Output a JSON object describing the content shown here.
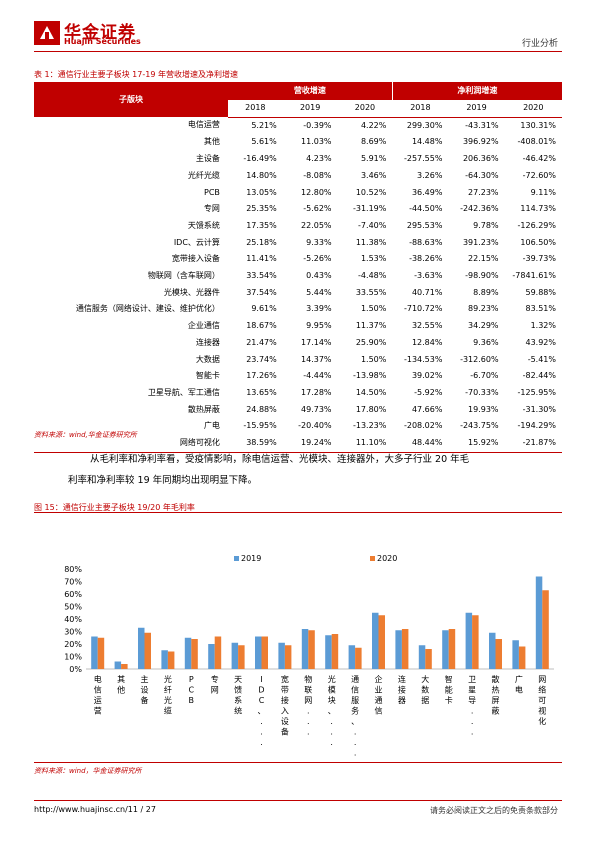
{
  "header": {
    "logo_cn": "华金证券",
    "logo_en": "Huajin Securities",
    "doc_type": "行业分析"
  },
  "table": {
    "caption": "表 1：通信行业主要子板块 17-19 年营收增速及净利增速",
    "col_sector": "子版块",
    "group_revenue": "营收增速",
    "group_profit": "净利润增速",
    "years": [
      "2018",
      "2019",
      "2020",
      "2018",
      "2019",
      "2020"
    ],
    "rows": [
      {
        "name": "电信运营",
        "v": [
          "5.21%",
          "-0.39%",
          "4.22%",
          "299.30%",
          "-43.31%",
          "130.31%"
        ]
      },
      {
        "name": "其他",
        "v": [
          "5.61%",
          "11.03%",
          "8.69%",
          "14.48%",
          "396.92%",
          "-408.01%"
        ]
      },
      {
        "name": "主设备",
        "v": [
          "-16.49%",
          "4.23%",
          "5.91%",
          "-257.55%",
          "206.36%",
          "-46.42%"
        ]
      },
      {
        "name": "光纤光缆",
        "v": [
          "14.80%",
          "-8.08%",
          "3.46%",
          "3.26%",
          "-64.30%",
          "-72.60%"
        ]
      },
      {
        "name": "PCB",
        "v": [
          "13.05%",
          "12.80%",
          "10.52%",
          "36.49%",
          "27.23%",
          "9.11%"
        ]
      },
      {
        "name": "专网",
        "v": [
          "25.35%",
          "-5.62%",
          "-31.19%",
          "-44.50%",
          "-242.36%",
          "114.73%"
        ]
      },
      {
        "name": "天馈系统",
        "v": [
          "17.35%",
          "22.05%",
          "-7.40%",
          "295.53%",
          "9.78%",
          "-126.29%"
        ]
      },
      {
        "name": "IDC、云计算",
        "v": [
          "25.18%",
          "9.33%",
          "11.38%",
          "-88.63%",
          "391.23%",
          "106.50%"
        ]
      },
      {
        "name": "宽带接入设备",
        "v": [
          "11.41%",
          "-5.26%",
          "1.53%",
          "-38.26%",
          "22.15%",
          "-39.73%"
        ]
      },
      {
        "name": "物联网（含车联网）",
        "v": [
          "33.54%",
          "0.43%",
          "-4.48%",
          "-3.63%",
          "-98.90%",
          "-7841.61%"
        ]
      },
      {
        "name": "光模块、光器件",
        "v": [
          "37.54%",
          "5.44%",
          "33.55%",
          "40.71%",
          "8.89%",
          "59.88%"
        ]
      },
      {
        "name": "通信服务（网络设计、建设、维护优化）",
        "v": [
          "9.61%",
          "3.39%",
          "1.50%",
          "-710.72%",
          "89.23%",
          "83.51%"
        ]
      },
      {
        "name": "企业通信",
        "v": [
          "18.67%",
          "9.95%",
          "11.37%",
          "32.55%",
          "34.29%",
          "1.32%"
        ]
      },
      {
        "name": "连接器",
        "v": [
          "21.47%",
          "17.14%",
          "25.90%",
          "12.84%",
          "9.36%",
          "43.92%"
        ]
      },
      {
        "name": "大数据",
        "v": [
          "23.74%",
          "14.37%",
          "1.50%",
          "-134.53%",
          "-312.60%",
          "-5.41%"
        ]
      },
      {
        "name": "智能卡",
        "v": [
          "17.26%",
          "-4.44%",
          "-13.98%",
          "39.02%",
          "-6.70%",
          "-82.44%"
        ]
      },
      {
        "name": "卫星导航、军工通信",
        "v": [
          "13.65%",
          "17.28%",
          "14.50%",
          "-5.92%",
          "-70.33%",
          "-125.95%"
        ]
      },
      {
        "name": "散热屏蔽",
        "v": [
          "24.88%",
          "49.73%",
          "17.80%",
          "47.66%",
          "19.93%",
          "-31.30%"
        ]
      },
      {
        "name": "广电",
        "v": [
          "-15.95%",
          "-20.40%",
          "-13.23%",
          "-208.02%",
          "-243.75%",
          "-194.29%"
        ]
      },
      {
        "name": "网络可视化",
        "v": [
          "38.59%",
          "19.24%",
          "11.10%",
          "48.44%",
          "15.92%",
          "-21.87%"
        ]
      }
    ],
    "source": "资料来源：wind,华金证券研究所"
  },
  "paragraph": {
    "line1": "从毛利率和净利率看，受疫情影响，除电信运营、光模块、连接器外，大多子行业 20 年毛",
    "line2": "利率和净利率较 19 年同期均出现明显下降。"
  },
  "figure": {
    "caption": "图 15：通信行业主要子板块 19/20 年毛利率",
    "source": "资料来源：wind，华金证券研究所"
  },
  "chart_data": {
    "type": "bar",
    "categories": [
      "电信运营",
      "其他",
      "主设备",
      "光纤光缆",
      "PCB",
      "专网",
      "天馈系统",
      "IDC、...",
      "宽带接入设备",
      "物联网...",
      "光模块、...",
      "通信服务、...",
      "企业通信",
      "连接器",
      "大数据",
      "智能卡",
      "卫星导...",
      "散热屏蔽",
      "广电",
      "网络可视化"
    ],
    "series": [
      {
        "name": "2019",
        "color": "#5b9bd5",
        "values": [
          26,
          6,
          33,
          15,
          25,
          20,
          21,
          26,
          21,
          32,
          27,
          19,
          45,
          31,
          19,
          31,
          45,
          29,
          23,
          74
        ]
      },
      {
        "name": "2020",
        "color": "#ed7d31",
        "values": [
          25,
          4,
          29,
          14,
          24,
          26,
          19,
          26,
          19,
          31,
          28,
          17,
          43,
          32,
          16,
          32,
          43,
          24,
          18,
          63
        ]
      }
    ],
    "y_ticks": [
      "0%",
      "10%",
      "20%",
      "30%",
      "40%",
      "50%",
      "60%",
      "70%",
      "80%"
    ],
    "ylim": [
      0,
      80
    ],
    "legend_position": "top-center",
    "grid": false
  },
  "footer": {
    "url": "http://www.huajinsc.cn/11 / 27",
    "note": "请务必阅读正文之后的免责条款部分"
  }
}
